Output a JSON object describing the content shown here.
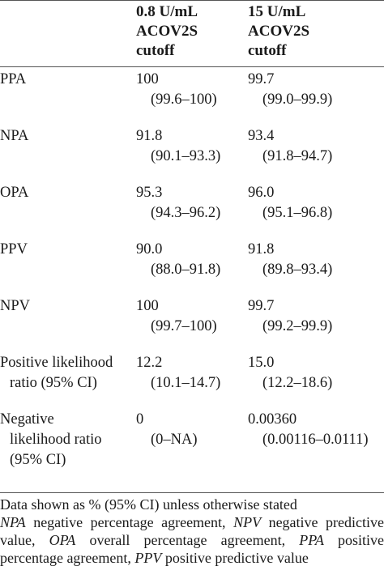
{
  "header": {
    "col1": [
      "0.8 U/mL",
      "ACOV2S",
      "cutoff"
    ],
    "col2": [
      "15 U/mL",
      "ACOV2S",
      "cutoff"
    ]
  },
  "rows": [
    {
      "label": [
        "PPA"
      ],
      "v1": "100",
      "ci1": "(99.6–100)",
      "v2": "99.7",
      "ci2": "(99.0–99.9)"
    },
    {
      "label": [
        "NPA"
      ],
      "v1": "91.8",
      "ci1": "(90.1–93.3)",
      "v2": "93.4",
      "ci2": "(91.8–94.7)"
    },
    {
      "label": [
        "OPA"
      ],
      "v1": "95.3",
      "ci1": "(94.3–96.2)",
      "v2": "96.0",
      "ci2": "(95.1–96.8)"
    },
    {
      "label": [
        "PPV"
      ],
      "v1": "90.0",
      "ci1": "(88.0–91.8)",
      "v2": "91.8",
      "ci2": "(89.8–93.4)"
    },
    {
      "label": [
        "NPV"
      ],
      "v1": "100",
      "ci1": "(99.7–100)",
      "v2": "99.7",
      "ci2": "(99.2–99.9)"
    },
    {
      "label": [
        "Positive likelihood",
        "ratio (95% CI)"
      ],
      "v1": "12.2",
      "ci1": "(10.1–14.7)",
      "v2": "15.0",
      "ci2": "(12.2–18.6)"
    },
    {
      "label": [
        "Negative",
        "likelihood ratio",
        "(95% CI)"
      ],
      "v1": "0",
      "ci1": "(0–NA)",
      "v2": "0.00360",
      "ci2": "(0.00116–0.0111)"
    }
  ],
  "footnote": {
    "line1": "Data shown as % (95% CI) unless otherwise stated",
    "abbreviations": [
      {
        "abbr": "NPA",
        "text": "negative percentage agreement, "
      },
      {
        "abbr": "NPV",
        "text": "negative predictive value, "
      },
      {
        "abbr": "OPA",
        "text": "overall percentage agreement, "
      },
      {
        "abbr": "PPA",
        "text": "positive percentage agreement, "
      },
      {
        "abbr": "PPV",
        "text": "positive predictive value"
      }
    ]
  }
}
